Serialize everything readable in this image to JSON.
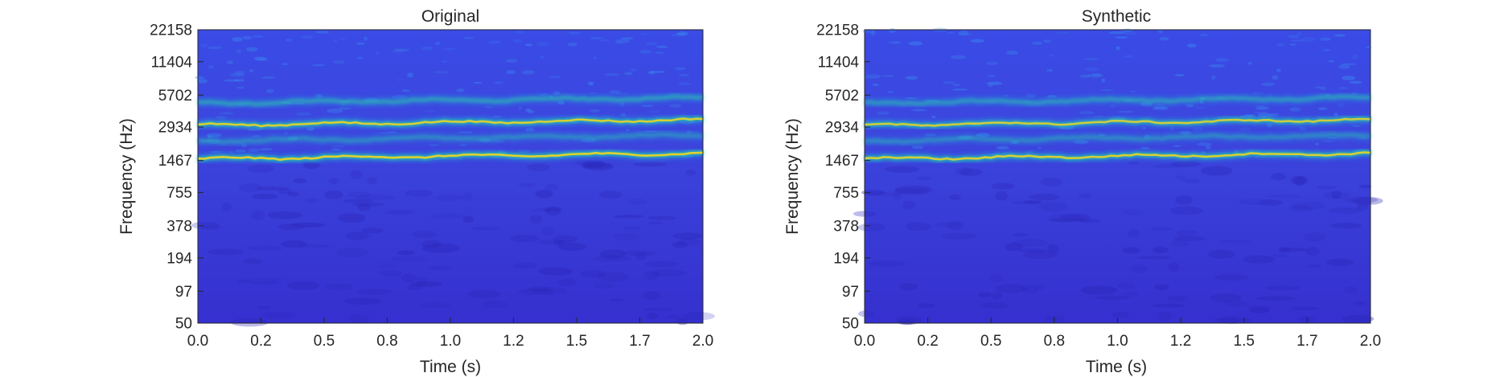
{
  "chart_data": [
    {
      "type": "heatmap",
      "title": "Original",
      "xlabel": "Time (s)",
      "ylabel": "Frequency (Hz)",
      "xlim": [
        0.0,
        2.0
      ],
      "x_ticks": [
        "0.0",
        "0.2",
        "0.5",
        "0.8",
        "1.0",
        "1.2",
        "1.5",
        "1.7",
        "2.0"
      ],
      "y_scale": "log",
      "ylim": [
        50,
        22158
      ],
      "y_ticks": [
        "50",
        "97",
        "194",
        "378",
        "755",
        "1467",
        "2934",
        "5702",
        "11404",
        "22158"
      ],
      "colormap": "parula",
      "colors": {
        "background": "#3d3ddc",
        "low": "#2a30c8",
        "mid": "#1ab0d6",
        "high": "#f6d51f"
      },
      "bands": [
        {
          "freq_start": 1467,
          "freq_end": 1850,
          "intensity": 0.9
        },
        {
          "freq_start": 3100,
          "freq_end": 3550,
          "intensity": 0.85
        },
        {
          "freq_start": 5000,
          "freq_end": 5500,
          "intensity": 0.5
        },
        {
          "freq_start": 2300,
          "freq_end": 2500,
          "intensity": 0.35
        }
      ]
    },
    {
      "type": "heatmap",
      "title": "Synthetic",
      "xlabel": "Time (s)",
      "ylabel": "Frequency (Hz)",
      "xlim": [
        0.0,
        2.0
      ],
      "x_ticks": [
        "0.0",
        "0.2",
        "0.5",
        "0.8",
        "1.0",
        "1.2",
        "1.5",
        "1.7",
        "2.0"
      ],
      "y_scale": "log",
      "ylim": [
        50,
        22158
      ],
      "y_ticks": [
        "50",
        "97",
        "194",
        "378",
        "755",
        "1467",
        "2934",
        "5702",
        "11404",
        "22158"
      ],
      "colormap": "parula",
      "colors": {
        "background": "#3d3ddc",
        "low": "#2a30c8",
        "mid": "#1ab0d6",
        "high": "#f6d51f"
      },
      "bands": [
        {
          "freq_start": 1467,
          "freq_end": 1850,
          "intensity": 0.85
        },
        {
          "freq_start": 3100,
          "freq_end": 3550,
          "intensity": 0.8
        },
        {
          "freq_start": 5000,
          "freq_end": 5500,
          "intensity": 0.45
        },
        {
          "freq_start": 2300,
          "freq_end": 2500,
          "intensity": 0.35
        }
      ]
    }
  ]
}
